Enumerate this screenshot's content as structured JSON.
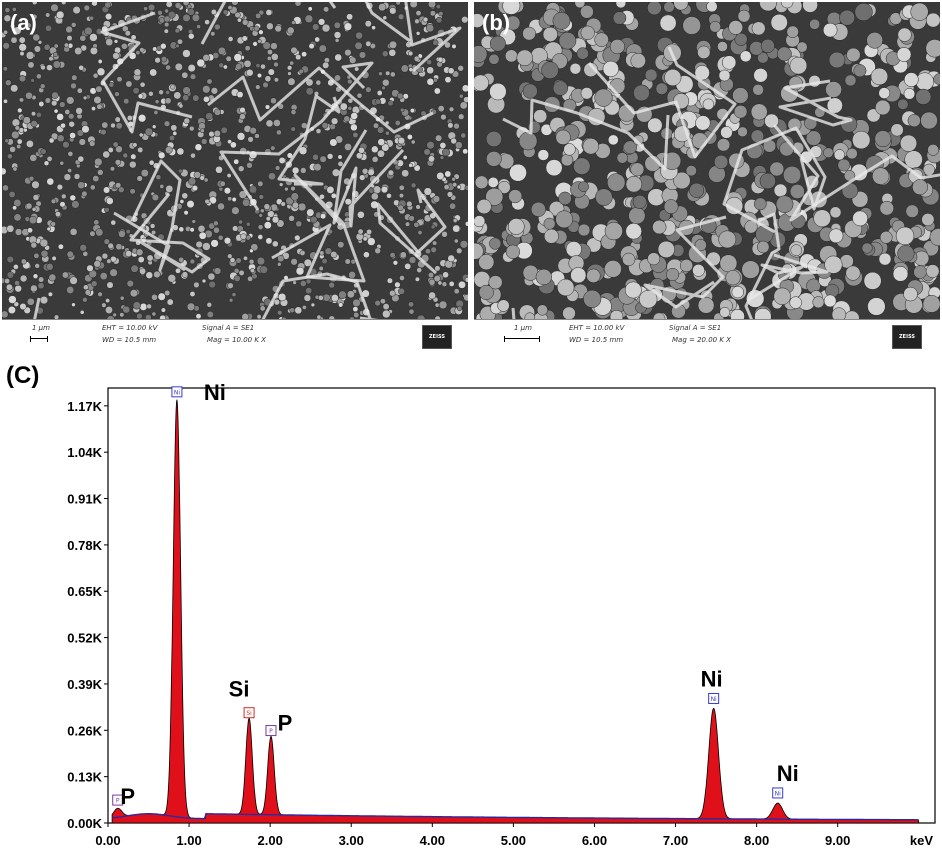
{
  "panels": {
    "a": {
      "label": "(a)",
      "scale": "1 µm",
      "eht": "EHT = 10.00 kV",
      "wd": "WD = 10.5 mm",
      "signal": "Signal A = SE1",
      "mag": "Mag = 10.00 K X",
      "logo": "ZEISS"
    },
    "b": {
      "label": "(b)",
      "scale": "1 µm",
      "eht": "EHT = 10.00 kV",
      "wd": "WD = 10.5 mm",
      "signal": "Signal A = SE1",
      "mag": "Mag = 20.00 K X",
      "logo": "ZEISS"
    },
    "c": {
      "label": "(C)"
    }
  },
  "colors": {
    "spectrum_fill": "#e0101a",
    "background_line": "#2a2aa0",
    "ni_marker": "#3a3ad0",
    "si_marker": "#d02a2a",
    "p_marker": "#7a3aa0"
  },
  "chart_data": {
    "type": "area",
    "xlabel": "keV",
    "ylabel": "",
    "xlim": [
      0,
      10.2
    ],
    "ylim": [
      0,
      1.22
    ],
    "x_ticks": [
      "0.00",
      "1.00",
      "2.00",
      "3.00",
      "4.00",
      "5.00",
      "6.00",
      "7.00",
      "8.00",
      "9.00"
    ],
    "x_tick_values": [
      0,
      1,
      2,
      3,
      4,
      5,
      6,
      7,
      8,
      9
    ],
    "y_ticks": [
      "0.00K",
      "0.13K",
      "0.26K",
      "0.39K",
      "0.52K",
      "0.65K",
      "0.78K",
      "0.91K",
      "1.04K",
      "1.17K"
    ],
    "y_tick_values": [
      0,
      0.13,
      0.26,
      0.39,
      0.52,
      0.65,
      0.78,
      0.91,
      1.04,
      1.17
    ],
    "peaks": [
      {
        "element": "P",
        "energy": 0.12,
        "height": 0.025,
        "width": 0.05
      },
      {
        "element": "Ni",
        "energy": 0.85,
        "height": 1.17,
        "width": 0.045
      },
      {
        "element": "Si",
        "energy": 1.74,
        "height": 0.27,
        "width": 0.04
      },
      {
        "element": "P",
        "energy": 2.01,
        "height": 0.22,
        "width": 0.04
      },
      {
        "element": "Ni",
        "energy": 7.47,
        "height": 0.31,
        "width": 0.06
      },
      {
        "element": "Ni",
        "energy": 8.26,
        "height": 0.045,
        "width": 0.06
      }
    ],
    "annotations": [
      {
        "text": "Ni",
        "energy": 0.85
      },
      {
        "text": "Si",
        "energy": 1.74
      },
      {
        "text": "P",
        "energy": 2.01
      },
      {
        "text": "P",
        "energy": 0.12
      },
      {
        "text": "Ni",
        "energy": 7.47
      },
      {
        "text": "Ni",
        "energy": 8.26
      }
    ],
    "markers": [
      {
        "element": "Ni",
        "energy": 0.85,
        "height": 1.17
      },
      {
        "element": "Si",
        "energy": 1.74,
        "height": 0.27
      },
      {
        "element": "P",
        "energy": 2.01,
        "height": 0.22
      },
      {
        "element": "P",
        "energy": 0.12,
        "height": 0.025
      },
      {
        "element": "Ni",
        "energy": 7.47,
        "height": 0.31
      },
      {
        "element": "Ni",
        "energy": 8.26,
        "height": 0.045
      }
    ]
  }
}
